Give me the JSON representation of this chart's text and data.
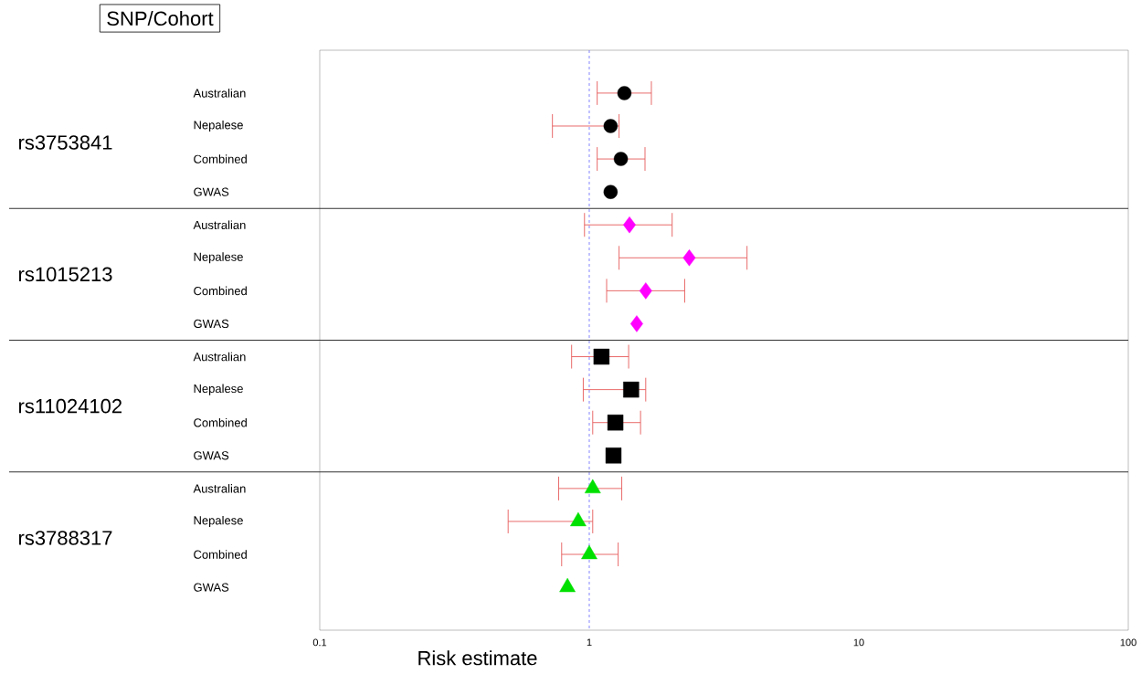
{
  "chart_data": {
    "type": "scatter",
    "orientation": "horizontal",
    "xlabel": "Risk estimate",
    "ylabel": "SNP/Cohort",
    "categories": [
      "Australian",
      "Nepalese",
      "Combined",
      "GWAS",
      "Australian",
      "Nepalese",
      "Combined",
      "GWAS",
      "Australian",
      "Nepalese",
      "Combined",
      "GWAS",
      "Australian",
      "Nepalese",
      "Combined",
      "GWAS"
    ],
    "log": "x",
    "xlim": [
      0.1,
      100
    ],
    "xticks": [
      0.1,
      1,
      10,
      100
    ],
    "grid": false,
    "annotations": [
      "rs3753841",
      "rs1015213",
      "rs11024102",
      "rs3788317"
    ],
    "series": [
      {
        "color": "#000000",
        "marker": "circle",
        "values": [
          1.35,
          1.2,
          1.31,
          1.2,
          null,
          null,
          null,
          null,
          null,
          null,
          null,
          null,
          null,
          null,
          null,
          null
        ],
        "errors": [
          [
            1.07,
            1.7
          ],
          [
            0.73,
            1.29
          ],
          [
            1.07,
            1.61
          ],
          null,
          null,
          null,
          null,
          null,
          null,
          null,
          null,
          null,
          null,
          null,
          null,
          null
        ]
      },
      {
        "color": "#ff00ff",
        "marker": "diamond",
        "values": [
          null,
          null,
          null,
          null,
          1.41,
          2.35,
          1.62,
          1.5,
          null,
          null,
          null,
          null,
          null,
          null,
          null,
          null
        ],
        "errors": [
          null,
          null,
          null,
          null,
          [
            0.96,
            2.03
          ],
          [
            1.29,
            3.85
          ],
          [
            1.16,
            2.26
          ],
          null,
          null,
          null,
          null,
          null,
          null,
          null,
          null,
          null
        ]
      },
      {
        "color": "#000000",
        "marker": "square",
        "values": [
          null,
          null,
          null,
          null,
          null,
          null,
          null,
          null,
          1.11,
          1.43,
          1.25,
          1.23,
          null,
          null,
          null,
          null
        ],
        "errors": [
          null,
          null,
          null,
          null,
          null,
          null,
          null,
          null,
          [
            0.86,
            1.4
          ],
          [
            0.95,
            1.62
          ],
          [
            1.03,
            1.55
          ],
          null,
          null,
          null,
          null,
          null
        ]
      },
      {
        "color": "#00e000",
        "marker": "triangle",
        "values": [
          null,
          null,
          null,
          null,
          null,
          null,
          null,
          null,
          null,
          null,
          null,
          null,
          1.03,
          0.91,
          1.0,
          0.83
        ],
        "errors": [
          null,
          null,
          null,
          null,
          null,
          null,
          null,
          null,
          null,
          null,
          null,
          null,
          [
            0.77,
            1.32
          ],
          [
            0.5,
            1.03
          ],
          [
            0.79,
            1.28
          ],
          null
        ]
      }
    ],
    "ref_lines": [
      {
        "axis": "x",
        "value": 1,
        "color": "#6666ff",
        "line_style": "dashed"
      }
    ]
  }
}
